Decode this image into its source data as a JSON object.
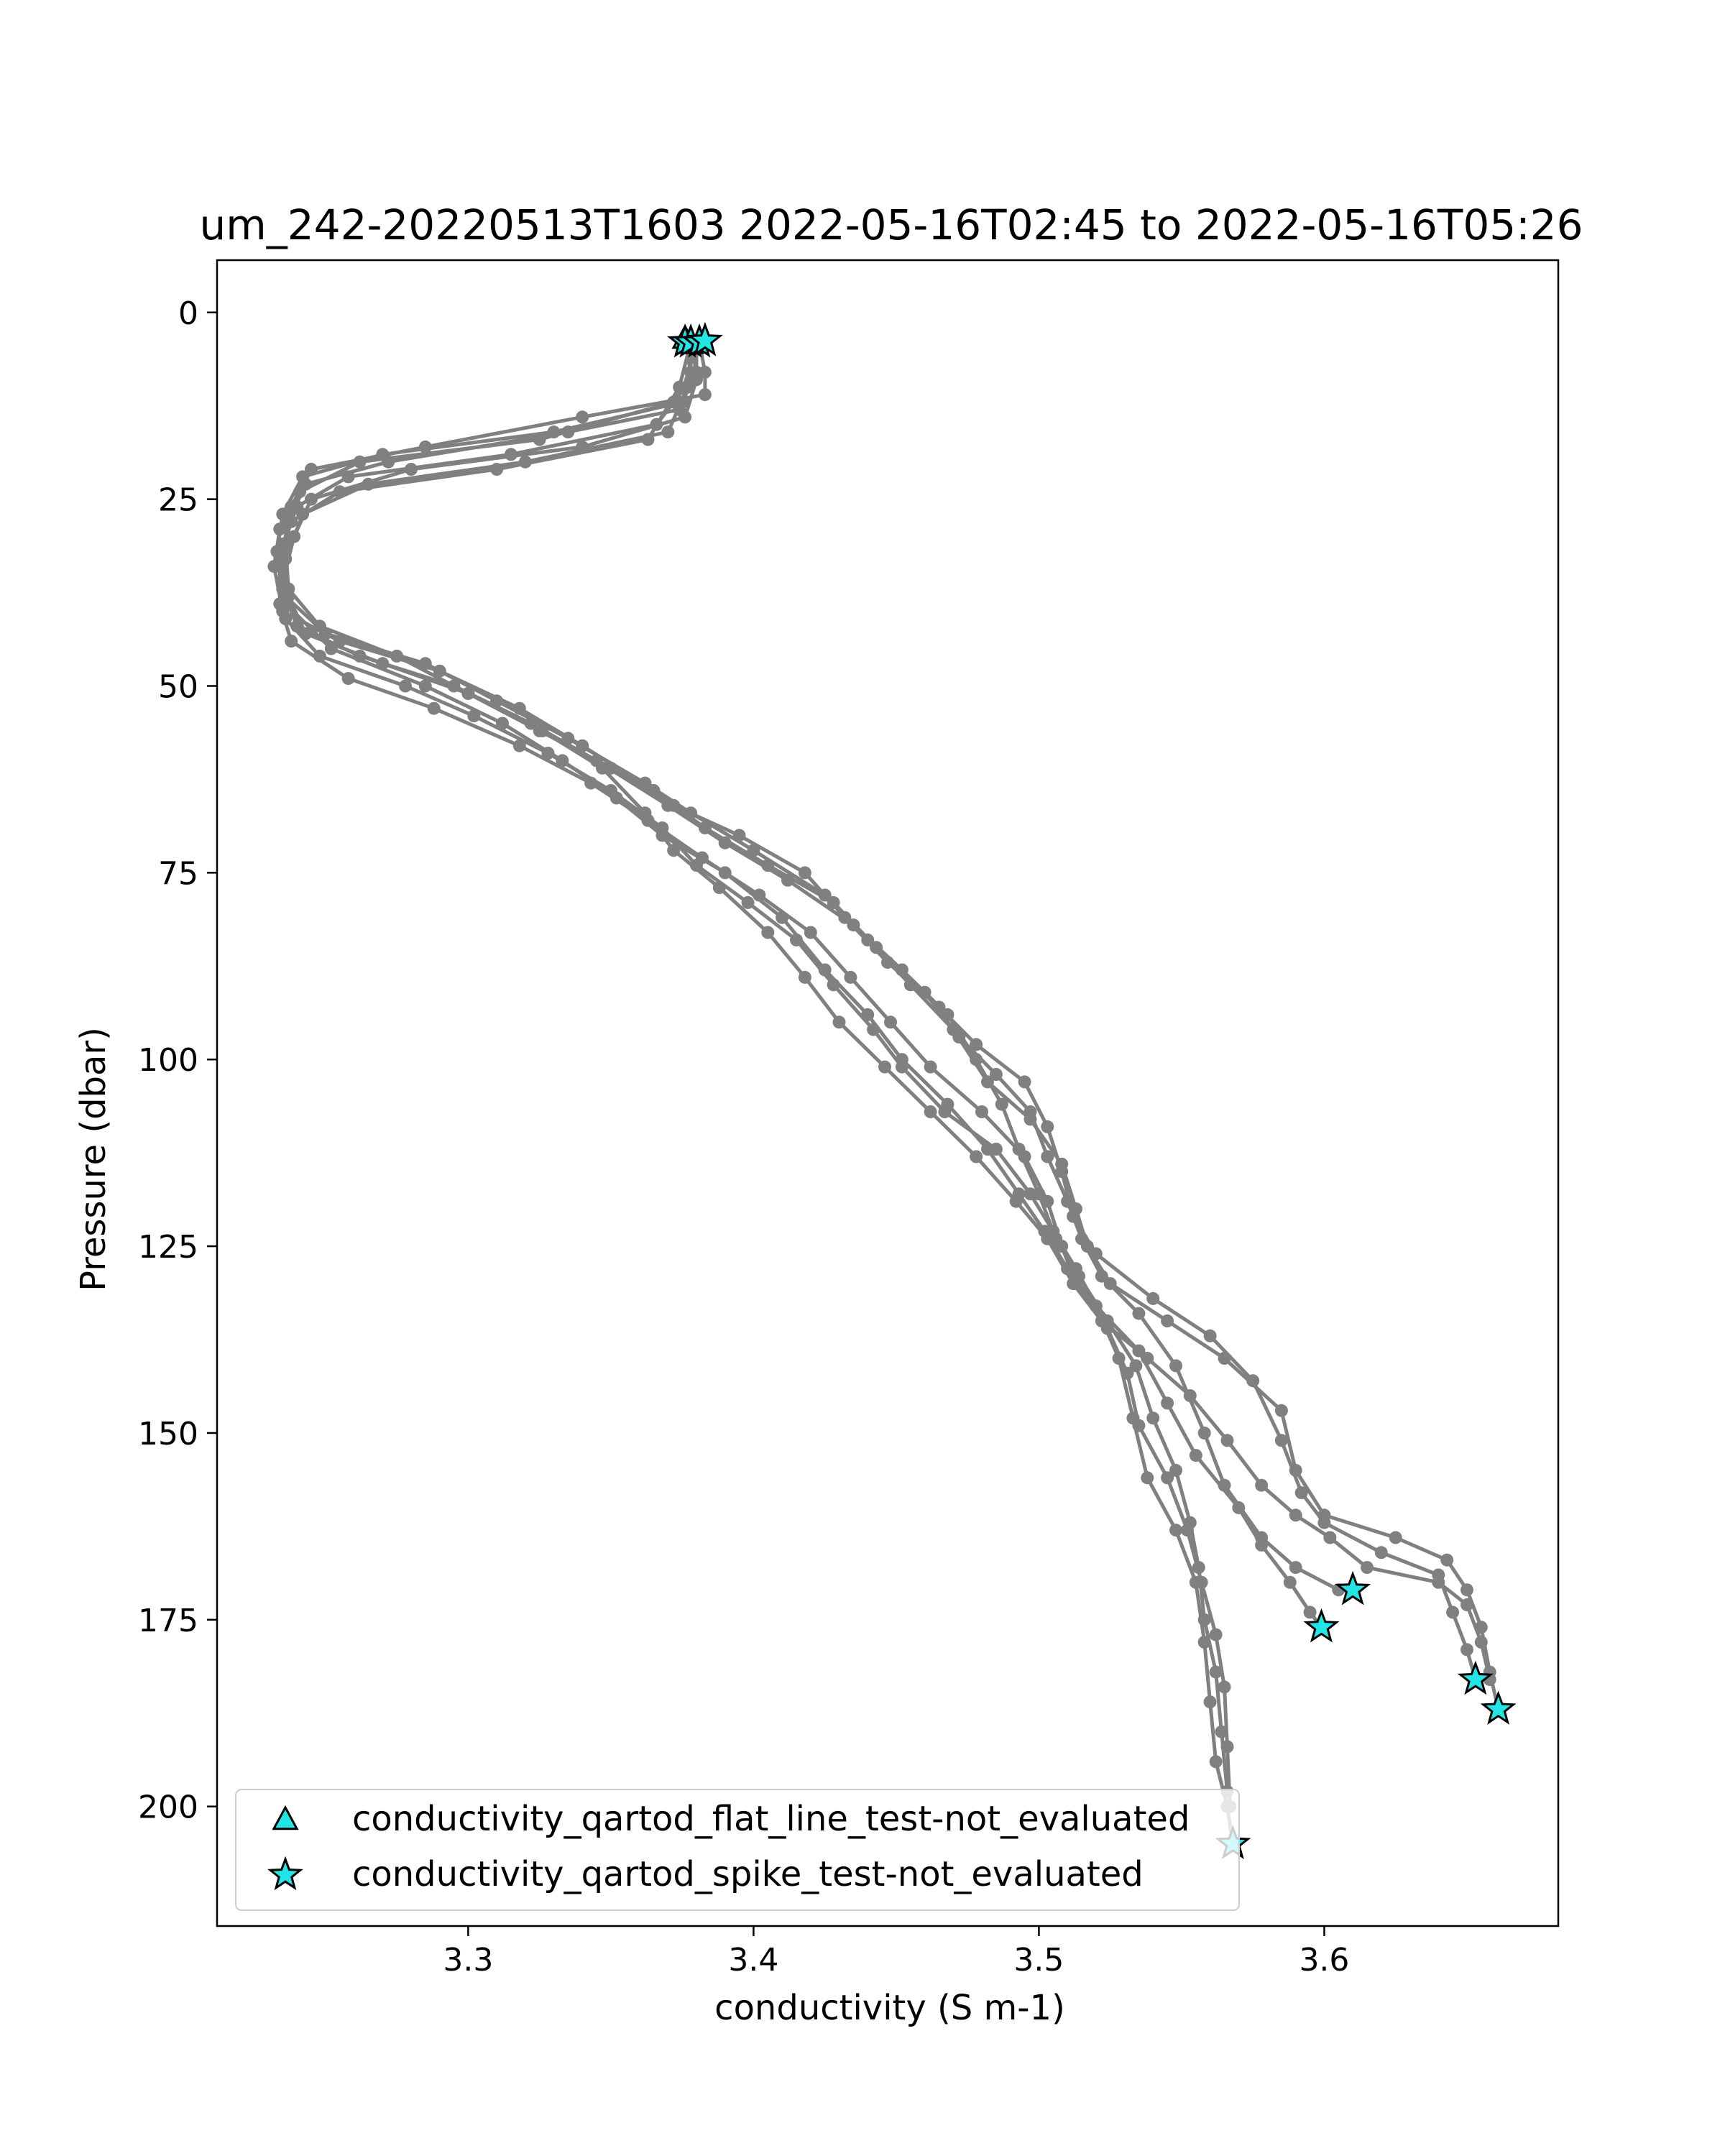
{
  "chart_data": {
    "type": "scatter",
    "title": "um_242-20220513T1603 2022-05-16T02:45 to 2022-05-16T05:26",
    "xlabel": "conductivity (S m-1)",
    "ylabel": "Pressure (dbar)",
    "xlim": [
      3.212,
      3.682
    ],
    "ylim": [
      216,
      -7
    ],
    "y_inverted": true,
    "grid": false,
    "legend_placement": "lower left",
    "x_ticks": [
      {
        "value": 3.3,
        "label": "3.3"
      },
      {
        "value": 3.4,
        "label": "3.4"
      },
      {
        "value": 3.5,
        "label": "3.5"
      },
      {
        "value": 3.6,
        "label": "3.6"
      }
    ],
    "y_ticks": [
      {
        "value": 0,
        "label": "0"
      },
      {
        "value": 25,
        "label": "25"
      },
      {
        "value": 50,
        "label": "50"
      },
      {
        "value": 75,
        "label": "75"
      },
      {
        "value": 100,
        "label": "100"
      },
      {
        "value": 125,
        "label": "125"
      },
      {
        "value": 150,
        "label": "150"
      },
      {
        "value": 175,
        "label": "175"
      },
      {
        "value": 200,
        "label": "200"
      }
    ],
    "profile_color": "#808080",
    "marker_color": "#22e6e6",
    "profiles": [
      {
        "points": [
          [
            3.378,
            4
          ],
          [
            3.38,
            8
          ],
          [
            3.375,
            12
          ],
          [
            3.33,
            16
          ],
          [
            3.27,
            19
          ],
          [
            3.242,
            22
          ],
          [
            3.235,
            27
          ],
          [
            3.233,
            32
          ],
          [
            3.236,
            38
          ],
          [
            3.25,
            43
          ],
          [
            3.285,
            47
          ],
          [
            3.31,
            52
          ],
          [
            3.335,
            57
          ],
          [
            3.362,
            63
          ],
          [
            3.378,
            67
          ],
          [
            3.4,
            72
          ],
          [
            3.425,
            78
          ],
          [
            3.44,
            84
          ],
          [
            3.455,
            90
          ],
          [
            3.47,
            96
          ],
          [
            3.482,
            103
          ],
          [
            3.497,
            108
          ],
          [
            3.508,
            114
          ],
          [
            3.513,
            120
          ],
          [
            3.517,
            125
          ],
          [
            3.525,
            130
          ],
          [
            3.545,
            135
          ],
          [
            3.565,
            140
          ],
          [
            3.585,
            147
          ],
          [
            3.59,
            155
          ],
          [
            3.6,
            161
          ],
          [
            3.625,
            164
          ],
          [
            3.643,
            167
          ],
          [
            3.65,
            171
          ],
          [
            3.655,
            176
          ],
          [
            3.658,
            182
          ],
          [
            3.661,
            187
          ]
        ]
      },
      {
        "points": [
          [
            3.381,
            4
          ],
          [
            3.383,
            8
          ],
          [
            3.383,
            11
          ],
          [
            3.34,
            14
          ],
          [
            3.285,
            18
          ],
          [
            3.245,
            21
          ],
          [
            3.238,
            26
          ],
          [
            3.236,
            31
          ],
          [
            3.237,
            37
          ],
          [
            3.248,
            42
          ],
          [
            3.275,
            46
          ],
          [
            3.3,
            51
          ],
          [
            3.325,
            56
          ],
          [
            3.35,
            61
          ],
          [
            3.372,
            66
          ],
          [
            3.395,
            70
          ],
          [
            3.418,
            75
          ],
          [
            3.432,
            81
          ],
          [
            3.447,
            87
          ],
          [
            3.465,
            93
          ],
          [
            3.478,
            98
          ],
          [
            3.495,
            103
          ],
          [
            3.503,
            109
          ],
          [
            3.508,
            115
          ],
          [
            3.512,
            121
          ],
          [
            3.52,
            126
          ],
          [
            3.54,
            132
          ],
          [
            3.56,
            137
          ],
          [
            3.575,
            143
          ],
          [
            3.585,
            151
          ],
          [
            3.592,
            158
          ],
          [
            3.6,
            162
          ],
          [
            3.62,
            166
          ],
          [
            3.64,
            169
          ],
          [
            3.645,
            174
          ],
          [
            3.65,
            179
          ],
          [
            3.653,
            183
          ]
        ]
      },
      {
        "points": [
          [
            3.376,
            4
          ],
          [
            3.378,
            8
          ],
          [
            3.372,
            12
          ],
          [
            3.325,
            17
          ],
          [
            3.262,
            20
          ],
          [
            3.241,
            24
          ],
          [
            3.234,
            29
          ],
          [
            3.232,
            34
          ],
          [
            3.235,
            40
          ],
          [
            3.255,
            44
          ],
          [
            3.29,
            48
          ],
          [
            3.318,
            53
          ],
          [
            3.34,
            58
          ],
          [
            3.365,
            64
          ],
          [
            3.383,
            69
          ],
          [
            3.405,
            74
          ],
          [
            3.428,
            79
          ],
          [
            3.443,
            85
          ],
          [
            3.46,
            91
          ],
          [
            3.472,
            97
          ],
          [
            3.485,
            102
          ],
          [
            3.497,
            107
          ],
          [
            3.503,
            113
          ],
          [
            3.51,
            119
          ],
          [
            3.515,
            124
          ],
          [
            3.522,
            129
          ],
          [
            3.535,
            134
          ],
          [
            3.548,
            141
          ],
          [
            3.558,
            150
          ],
          [
            3.565,
            157
          ],
          [
            3.578,
            164
          ],
          [
            3.59,
            168
          ],
          [
            3.605,
            171
          ],
          [
            3.61,
            171
          ]
        ]
      },
      {
        "points": [
          [
            3.378,
            4
          ],
          [
            3.378,
            8
          ],
          [
            3.374,
            13
          ],
          [
            3.335,
            16
          ],
          [
            3.272,
            20
          ],
          [
            3.243,
            23
          ],
          [
            3.237,
            28
          ],
          [
            3.234,
            34
          ],
          [
            3.236,
            39
          ],
          [
            3.252,
            45
          ],
          [
            3.285,
            50
          ],
          [
            3.312,
            55
          ],
          [
            3.333,
            60
          ],
          [
            3.352,
            65
          ],
          [
            3.368,
            70
          ],
          [
            3.39,
            75
          ],
          [
            3.41,
            81
          ],
          [
            3.425,
            88
          ],
          [
            3.44,
            94
          ],
          [
            3.452,
            100
          ],
          [
            3.468,
            106
          ],
          [
            3.482,
            112
          ],
          [
            3.493,
            118
          ],
          [
            3.502,
            123
          ],
          [
            3.51,
            128
          ],
          [
            3.52,
            133
          ],
          [
            3.535,
            139
          ],
          [
            3.545,
            146
          ],
          [
            3.555,
            153
          ],
          [
            3.57,
            160
          ],
          [
            3.578,
            165
          ],
          [
            3.588,
            170
          ],
          [
            3.595,
            174
          ],
          [
            3.599,
            176
          ]
        ]
      },
      {
        "points": [
          [
            3.38,
            4
          ],
          [
            3.38,
            9
          ],
          [
            3.376,
            14
          ],
          [
            3.34,
            18
          ],
          [
            3.28,
            21
          ],
          [
            3.245,
            25
          ],
          [
            3.239,
            30
          ],
          [
            3.235,
            36
          ],
          [
            3.236,
            41
          ],
          [
            3.248,
            46
          ],
          [
            3.278,
            50
          ],
          [
            3.302,
            54
          ],
          [
            3.328,
            59
          ],
          [
            3.35,
            64
          ],
          [
            3.368,
            69
          ],
          [
            3.38,
            74
          ],
          [
            3.398,
            79
          ],
          [
            3.415,
            84
          ],
          [
            3.428,
            90
          ],
          [
            3.442,
            96
          ],
          [
            3.452,
            101
          ],
          [
            3.467,
            107
          ],
          [
            3.485,
            112
          ],
          [
            3.497,
            118
          ],
          [
            3.505,
            123
          ],
          [
            3.513,
            128
          ],
          [
            3.52,
            133
          ],
          [
            3.528,
            140
          ],
          [
            3.533,
            148
          ],
          [
            3.538,
            156
          ],
          [
            3.548,
            163
          ],
          [
            3.555,
            170
          ],
          [
            3.558,
            178
          ],
          [
            3.56,
            186
          ],
          [
            3.562,
            194
          ],
          [
            3.566,
            200
          ],
          [
            3.568,
            205
          ]
        ]
      },
      {
        "points": [
          [
            3.377,
            4
          ],
          [
            3.378,
            9
          ],
          [
            3.366,
            15
          ],
          [
            3.315,
            19
          ],
          [
            3.258,
            22
          ],
          [
            3.24,
            26
          ],
          [
            3.235,
            31
          ],
          [
            3.235,
            37
          ],
          [
            3.24,
            42
          ],
          [
            3.262,
            46
          ],
          [
            3.295,
            50
          ],
          [
            3.322,
            55
          ],
          [
            3.345,
            60
          ],
          [
            3.37,
            66
          ],
          [
            3.39,
            71
          ],
          [
            3.412,
            76
          ],
          [
            3.435,
            82
          ],
          [
            3.452,
            88
          ],
          [
            3.468,
            94
          ],
          [
            3.478,
            100
          ],
          [
            3.487,
            106
          ],
          [
            3.493,
            112
          ],
          [
            3.5,
            118
          ],
          [
            3.506,
            124
          ],
          [
            3.514,
            129
          ],
          [
            3.524,
            135
          ],
          [
            3.534,
            141
          ],
          [
            3.54,
            148
          ],
          [
            3.548,
            155
          ],
          [
            3.553,
            162
          ],
          [
            3.556,
            168
          ],
          [
            3.558,
            175
          ],
          [
            3.562,
            182
          ],
          [
            3.564,
            190
          ],
          [
            3.566,
            198
          ]
        ]
      },
      {
        "points": [
          [
            3.379,
            4
          ],
          [
            3.377,
            10
          ],
          [
            3.37,
            16
          ],
          [
            3.32,
            20
          ],
          [
            3.265,
            23
          ],
          [
            3.242,
            27
          ],
          [
            3.236,
            33
          ],
          [
            3.237,
            38
          ],
          [
            3.243,
            43
          ],
          [
            3.27,
            47
          ],
          [
            3.3,
            51
          ],
          [
            3.326,
            56
          ],
          [
            3.347,
            61
          ],
          [
            3.362,
            67
          ],
          [
            3.372,
            72
          ],
          [
            3.388,
            77
          ],
          [
            3.405,
            83
          ],
          [
            3.418,
            89
          ],
          [
            3.43,
            95
          ],
          [
            3.446,
            101
          ],
          [
            3.462,
            107
          ],
          [
            3.478,
            113
          ],
          [
            3.492,
            119
          ],
          [
            3.503,
            124
          ],
          [
            3.512,
            130
          ],
          [
            3.524,
            136
          ],
          [
            3.531,
            142
          ],
          [
            3.535,
            149
          ],
          [
            3.545,
            156
          ],
          [
            3.552,
            163
          ],
          [
            3.557,
            170
          ],
          [
            3.562,
            177
          ],
          [
            3.565,
            184
          ],
          [
            3.566,
            192
          ],
          [
            3.567,
            200
          ]
        ]
      },
      {
        "points": [
          [
            3.378,
            4
          ],
          [
            3.374,
            10
          ],
          [
            3.363,
            17
          ],
          [
            3.31,
            21
          ],
          [
            3.255,
            24
          ],
          [
            3.238,
            28
          ],
          [
            3.234,
            33
          ],
          [
            3.234,
            39
          ],
          [
            3.238,
            44
          ],
          [
            3.258,
            49
          ],
          [
            3.288,
            53
          ],
          [
            3.318,
            58
          ],
          [
            3.343,
            63
          ],
          [
            3.363,
            68
          ],
          [
            3.382,
            73
          ],
          [
            3.402,
            78
          ],
          [
            3.42,
            83
          ],
          [
            3.434,
            89
          ],
          [
            3.448,
            95
          ],
          [
            3.462,
            101
          ],
          [
            3.48,
            107
          ],
          [
            3.495,
            113
          ],
          [
            3.503,
            119
          ],
          [
            3.508,
            125
          ],
          [
            3.513,
            130
          ],
          [
            3.522,
            135
          ],
          [
            3.538,
            140
          ],
          [
            3.553,
            145
          ],
          [
            3.566,
            151
          ],
          [
            3.578,
            157
          ],
          [
            3.59,
            161
          ],
          [
            3.602,
            164
          ],
          [
            3.615,
            168
          ],
          [
            3.64,
            170
          ],
          [
            3.65,
            173
          ],
          [
            3.655,
            178
          ],
          [
            3.658,
            183
          ]
        ]
      }
    ],
    "flagged_points": [
      {
        "test": "flat_line",
        "x": 3.376,
        "y": 3.5
      },
      {
        "test": "flat_line",
        "x": 3.381,
        "y": 3.8
      },
      {
        "test": "flat_line",
        "x": 3.378,
        "y": 4.2
      },
      {
        "test": "spike",
        "x": 3.376,
        "y": 4
      },
      {
        "test": "spike",
        "x": 3.378,
        "y": 4
      },
      {
        "test": "spike",
        "x": 3.381,
        "y": 4
      },
      {
        "test": "spike",
        "x": 3.383,
        "y": 3.8
      },
      {
        "test": "spike",
        "x": 3.61,
        "y": 171
      },
      {
        "test": "spike",
        "x": 3.599,
        "y": 176
      },
      {
        "test": "spike",
        "x": 3.653,
        "y": 183
      },
      {
        "test": "spike",
        "x": 3.661,
        "y": 187
      },
      {
        "test": "spike",
        "x": 3.568,
        "y": 205
      }
    ],
    "legend": [
      {
        "marker": "triangle",
        "label": "conductivity_qartod_flat_line_test-not_evaluated"
      },
      {
        "marker": "star",
        "label": "conductivity_qartod_spike_test-not_evaluated"
      }
    ]
  }
}
